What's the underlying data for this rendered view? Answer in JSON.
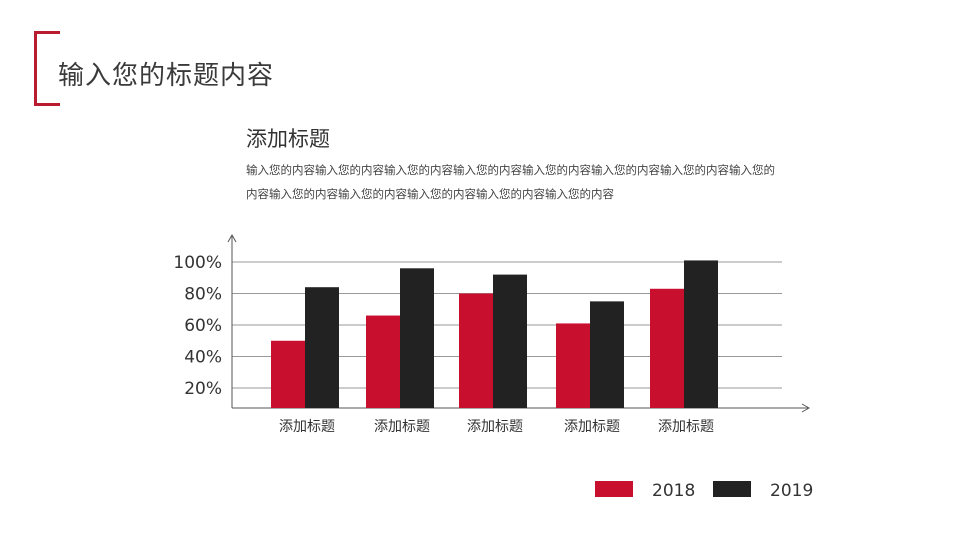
{
  "slide": {
    "title": "输入您的标题内容",
    "subheading": "添加标题",
    "body": "输入您的内容输入您的内容输入您的内容输入您的内容输入您的内容输入您的内容输入您的内容输入您的内容输入您的内容输入您的内容输入您的内容输入您的内容输入您的内容"
  },
  "colors": {
    "accent": "#c8102e",
    "dark": "#222222",
    "bracket": "#b81c2e",
    "grid": "#9a9a9a",
    "axis": "#555555"
  },
  "chart_data": {
    "type": "bar",
    "categories": [
      "添加标题",
      "添加标题",
      "添加标题",
      "添加标题",
      "添加标题"
    ],
    "series": [
      {
        "name": "2018",
        "color": "#c8102e",
        "values": [
          50,
          66,
          80,
          61,
          83
        ]
      },
      {
        "name": "2019",
        "color": "#222222",
        "values": [
          84,
          96,
          92,
          75,
          101
        ]
      }
    ],
    "yticks": [
      "20%",
      "40%",
      "60%",
      "80%",
      "100%"
    ],
    "ylim": [
      20,
      100
    ],
    "grid": true,
    "legend_position": "bottom-right"
  }
}
